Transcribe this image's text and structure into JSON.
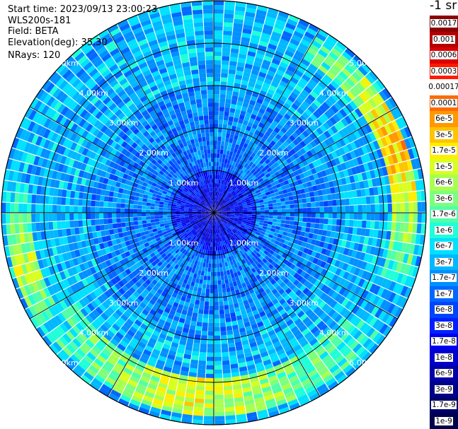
{
  "info": {
    "start_time": "Start time: 2023/09/13 23:00:23",
    "instrument": "WLS200s-181",
    "field": "Field: BETA",
    "elevation": "Elevation(deg): 35.30",
    "nrays": "NRays: 120"
  },
  "colors": {
    "background": "#ffffff",
    "grid": "#000000",
    "range_label": "#ffffff"
  },
  "colorbar": {
    "unit_label": "-1 sr",
    "levels": [
      {
        "label": "0.0017",
        "color": "#8b0000"
      },
      {
        "label": "0.001",
        "color": "#b40000"
      },
      {
        "label": "0.0006",
        "color": "#dc0000"
      },
      {
        "label": "0.0003",
        "color": "#ff1a00"
      },
      {
        "label": "0.00017",
        "color": "#ffffff"
      },
      {
        "label": "0.0001",
        "color": "#ff6a00"
      },
      {
        "label": "6e-5",
        "color": "#ff9900"
      },
      {
        "label": "3e-5",
        "color": "#ffc400"
      },
      {
        "label": "1.7e-5",
        "color": "#ffee00"
      },
      {
        "label": "1e-5",
        "color": "#d8ff1f"
      },
      {
        "label": "6e-6",
        "color": "#a8ff50"
      },
      {
        "label": "3e-6",
        "color": "#7dff7d"
      },
      {
        "label": "1.7e-6",
        "color": "#50ffa8"
      },
      {
        "label": "1e-6",
        "color": "#1fffd8"
      },
      {
        "label": "6e-7",
        "color": "#00e0ff"
      },
      {
        "label": "3e-7",
        "color": "#00b8ff"
      },
      {
        "label": "1.7e-7",
        "color": "#0090ff"
      },
      {
        "label": "1e-7",
        "color": "#0068ff"
      },
      {
        "label": "6e-8",
        "color": "#0044ff"
      },
      {
        "label": "3e-8",
        "color": "#0020ff"
      },
      {
        "label": "1.7e-8",
        "color": "#0000f0"
      },
      {
        "label": "1e-8",
        "color": "#0000cc"
      },
      {
        "label": "6e-9",
        "color": "#0000a8"
      },
      {
        "label": "3e-9",
        "color": "#000088"
      },
      {
        "label": "1.7e-9",
        "color": "#00006a"
      },
      {
        "label": "1e-9",
        "color": "#00004c"
      }
    ]
  },
  "chart_data": {
    "type": "heatmap",
    "projection": "polar PPI scan",
    "field": "BETA",
    "elevation_deg": 35.3,
    "n_rays": 120,
    "max_range_km": 5.0,
    "range_rings_km": [
      1.0,
      2.0,
      3.0,
      4.0,
      5.0
    ],
    "range_ring_labels": [
      "1.00km",
      "2.00km",
      "3.00km",
      "4.00km",
      "5.00km"
    ],
    "radial_spokes_deg": [
      0,
      30,
      60,
      90,
      120,
      150,
      180,
      210,
      240,
      270,
      300,
      330
    ],
    "color_scale": "log",
    "value_range": [
      1e-09,
      0.0017
    ],
    "typical_levels": {
      "near_center_0_1km": 1e-08,
      "inner_1_3km": 1e-07,
      "outer_3_5km": 3e-07,
      "bright_band_south_4_4.7km": 1e-05,
      "arc_east_north_east_4.3_4.8km": 3e-05
    },
    "grid": true
  }
}
